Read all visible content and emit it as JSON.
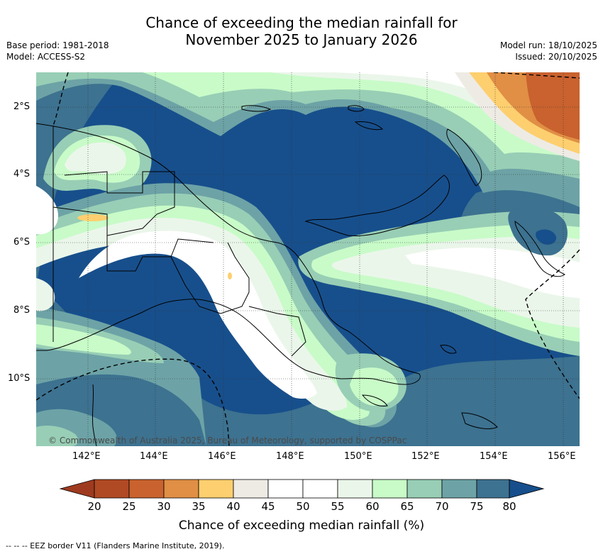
{
  "title": {
    "line1": "Chance of exceeding the median rainfall for",
    "line2": "November 2025 to January 2026"
  },
  "meta_left": {
    "base_period": "Base period: 1981-2018",
    "model": "Model: ACCESS-S2"
  },
  "meta_right": {
    "model_run": "Model run: 18/10/2025",
    "issued": "Issued: 20/10/2025"
  },
  "map": {
    "lat_labels": [
      "2°S",
      "4°S",
      "6°S",
      "8°S",
      "10°S"
    ],
    "lon_labels": [
      "142°E",
      "144°E",
      "146°E",
      "148°E",
      "150°E",
      "152°E",
      "154°E",
      "156°E"
    ],
    "copyright": "© Commonwealth of Australia 2025, Bureau of Meteorology, supported by COSPPac"
  },
  "colorbar": {
    "labels": [
      "20",
      "25",
      "30",
      "35",
      "40",
      "45",
      "50",
      "55",
      "60",
      "65",
      "70",
      "75",
      "80"
    ],
    "colors": [
      "#9e3a1f",
      "#b04a24",
      "#c9622e",
      "#e08f45",
      "#fdcf6f",
      "#eeebe5",
      "#ffffff",
      "#ffffff",
      "#ebf6ea",
      "#c8fbc8",
      "#98ceb5",
      "#6da3a6",
      "#3d7290",
      "#174f8c"
    ],
    "title": "Chance of exceeding median rainfall (%)"
  },
  "footnote": "-- -- -- EEZ border V11 (Flanders Marine Institute, 2019)."
}
